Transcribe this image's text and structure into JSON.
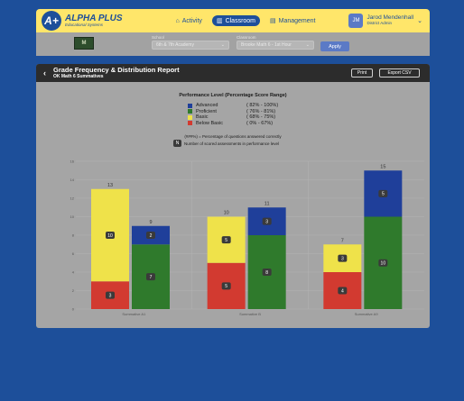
{
  "header": {
    "logo_badge": "A+",
    "logo_title": "ALPHA PLUS",
    "logo_subtitle": "Educational Systems",
    "nav": [
      {
        "label": "Activity",
        "icon": "home-icon",
        "glyph": "⌂"
      },
      {
        "label": "Classroom",
        "icon": "book-icon",
        "glyph": "▥"
      },
      {
        "label": "Management",
        "icon": "clipboard-icon",
        "glyph": "▤"
      }
    ],
    "active_nav": "Classroom",
    "user": {
      "initials": "JM",
      "name": "Jarod Mendenhall",
      "role": "District Admin"
    }
  },
  "filters": {
    "school_label": "School",
    "school_value": "6th & 7th Academy",
    "classroom_label": "Classroom",
    "classroom_value": "Brooke Math 6 - 1st Hour",
    "apply_label": "Apply",
    "crest_text": "M"
  },
  "report": {
    "title": "Grade Frequency & Distribution Report",
    "subtitle": "OK Math 6 Summatives",
    "print_label": "Print",
    "export_label": "Export CSV"
  },
  "legend": {
    "title": "Performance Level (Percentage Score Range)",
    "levels": [
      {
        "name": "Advanced",
        "range": "( 82% - 100%)",
        "color": "#1f3f9a"
      },
      {
        "name": "Proficient",
        "range": "( 76% - 81%)",
        "color": "#2f7a2c"
      },
      {
        "name": "Basic",
        "range": "( 68% - 75%)",
        "color": "#efe24a"
      },
      {
        "name": "Below Basic",
        "range": "( 0% - 67%)",
        "color": "#d23a30"
      }
    ],
    "note": "(###%) = Percentage of questions answered correctly",
    "count_chip": "N",
    "count_note": "Number of scored assessments in performance level"
  },
  "chart_data": {
    "type": "bar",
    "stacked": true,
    "categories": [
      "Summative A1",
      "Summative B",
      "Summative A9"
    ],
    "ylim": [
      0,
      16
    ],
    "yticks": [
      0,
      2,
      4,
      6,
      8,
      10,
      12,
      14,
      16
    ],
    "grid": true,
    "bars": [
      {
        "category": "Summative A1",
        "total": 13,
        "segments": [
          {
            "level": "Below Basic",
            "value": 3
          },
          {
            "level": "Basic",
            "value": 10
          }
        ]
      },
      {
        "category": "Summative A1",
        "total": 9,
        "segments": [
          {
            "level": "Proficient",
            "value": 7
          },
          {
            "level": "Advanced",
            "value": 2
          }
        ]
      },
      {
        "category": "Summative B",
        "total": 10,
        "segments": [
          {
            "level": "Below Basic",
            "value": 5
          },
          {
            "level": "Basic",
            "value": 5
          }
        ]
      },
      {
        "category": "Summative B",
        "total": 11,
        "segments": [
          {
            "level": "Proficient",
            "value": 8
          },
          {
            "level": "Advanced",
            "value": 3
          }
        ]
      },
      {
        "category": "Summative A9",
        "total": 7,
        "segments": [
          {
            "level": "Below Basic",
            "value": 4
          },
          {
            "level": "Basic",
            "value": 3
          }
        ]
      },
      {
        "category": "Summative A9",
        "total": 15,
        "segments": [
          {
            "level": "Proficient",
            "value": 10
          },
          {
            "level": "Advanced",
            "value": 5
          }
        ]
      }
    ]
  }
}
